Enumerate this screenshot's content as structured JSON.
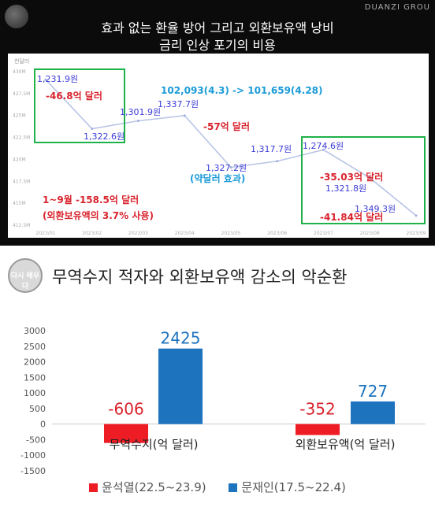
{
  "top": {
    "brand": "DUANZI GROU",
    "title_line1": "효과 없는 환율 방어 그리고 외환보유액 낭비",
    "title_line2": "금리 인상 포기의 비용",
    "y_unit_label": "천달러",
    "y_ticks": [
      "430M",
      "427.5M",
      "425M",
      "422.5M",
      "420M",
      "417.5M",
      "415M",
      "412.5M"
    ],
    "x_ticks": [
      "2023/01",
      "2023/02",
      "2023/03",
      "2023/04",
      "2023/05",
      "2023/06",
      "2023/07",
      "2023/08",
      "2023/09"
    ],
    "rate_labels": [
      {
        "text": "1,231.9원",
        "color": "#3b3bd6"
      },
      {
        "text": "1,322.6원",
        "color": "#3b3bd6"
      },
      {
        "text": "1,301.9원",
        "color": "#3b3bd6"
      },
      {
        "text": "1,337.7원",
        "color": "#3b3bd6"
      },
      {
        "text": "1,327.2원",
        "color": "#3b3bd6"
      },
      {
        "text": "1,317.7원",
        "color": "#3b3bd6"
      },
      {
        "text": "1,274.6원",
        "color": "#3b3bd6"
      },
      {
        "text": "1,321.8원",
        "color": "#3b3bd6"
      },
      {
        "text": "1,349.3원",
        "color": "#3b3bd6"
      }
    ],
    "annotations": [
      {
        "text": "-46.8억 달러",
        "color": "#d9232d"
      },
      {
        "text": "102,093(4.3) -> 101,659(4.28)",
        "color": "#1a9bd7"
      },
      {
        "text": "-57억 달러",
        "color": "#d9232d"
      },
      {
        "text": "(약달러 효과)",
        "color": "#1a9bd7"
      },
      {
        "text": "-35.03억 달러",
        "color": "#d9232d"
      },
      {
        "text": "-41.84억 달러",
        "color": "#d9232d"
      },
      {
        "text": "1~9월 -158.5억 달러",
        "color": "#d9232d"
      },
      {
        "text": "(외환보유액의 3.7% 사용)",
        "color": "#d9232d"
      }
    ]
  },
  "bottom": {
    "logo_text": "다시 배우다",
    "title": "무역수지 적자와 외환보유액 감소의 악순환",
    "legend": [
      {
        "label": "윤석열(22.5~23.9)",
        "color": "#ee1c24"
      },
      {
        "label": "문재인(17.5~22.4)",
        "color": "#1e73be"
      }
    ]
  },
  "chart_data": [
    {
      "type": "line",
      "title": "효과 없는 환율 방어 그리고 외환보유액 낭비 / 금리 인상 포기의 비용",
      "x": [
        "2023/01",
        "2023/02",
        "2023/03",
        "2023/04",
        "2023/05",
        "2023/06",
        "2023/07",
        "2023/08",
        "2023/09"
      ],
      "series": [
        {
          "name": "",
          "values": [
            429.0,
            423.4,
            424.3,
            424.9,
            419.0,
            419.7,
            421.0,
            417.8,
            413.5
          ]
        }
      ],
      "ylim": [
        412.5,
        430
      ],
      "xlabel": "",
      "ylabel": "천달러",
      "grid": false
    },
    {
      "type": "bar",
      "title": "무역수지 적자와 외환보유액 감소의 악순환",
      "categories": [
        "무역수지(억 달러)",
        "외환보유액(억 달러)"
      ],
      "series": [
        {
          "name": "윤석열(22.5~23.9)",
          "values": [
            -606,
            -352
          ]
        },
        {
          "name": "문재인(17.5~22.4)",
          "values": [
            2425,
            727
          ]
        }
      ],
      "y_ticks": [
        "3000",
        "2500",
        "2000",
        "1500",
        "1000",
        "500",
        "0",
        "-500",
        "-1000",
        "-1500"
      ],
      "ylim": [
        -1500,
        3000
      ],
      "legend": "bottom",
      "grid": false
    }
  ]
}
